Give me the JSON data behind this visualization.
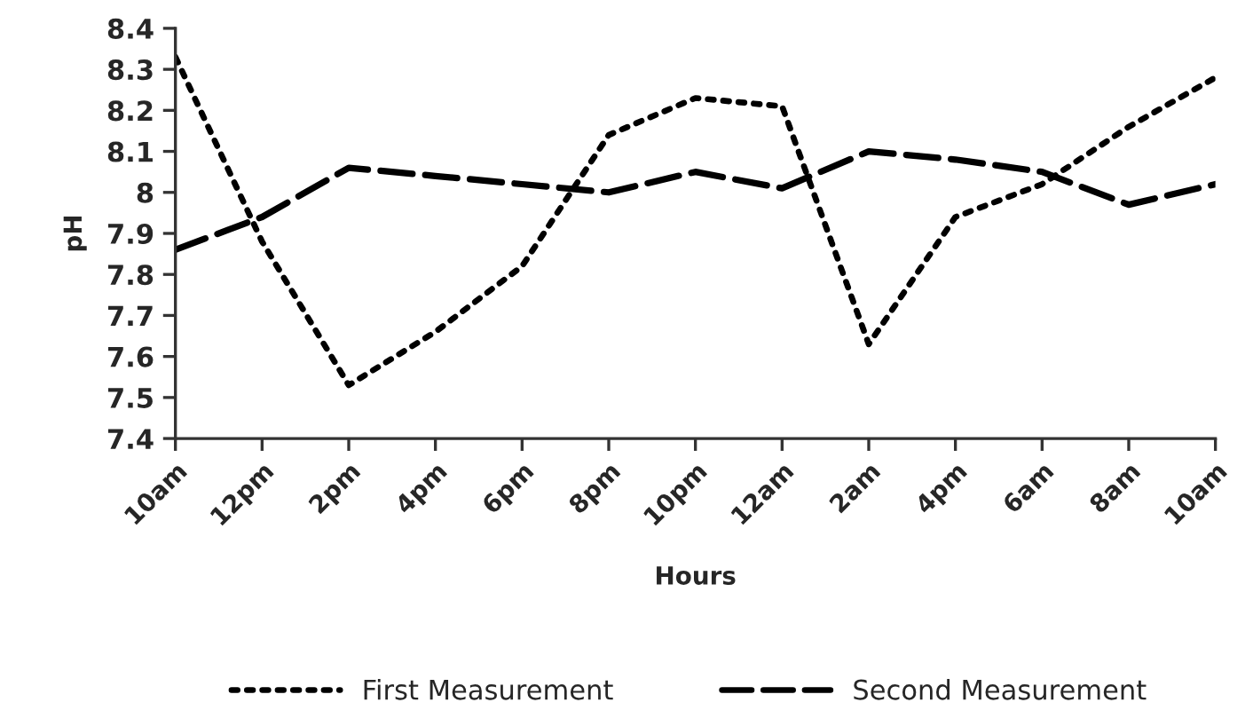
{
  "chart_data": {
    "type": "line",
    "xlabel": "Hours",
    "ylabel": "pH",
    "categories": [
      "10am",
      "12pm",
      "2pm",
      "4pm",
      "6pm",
      "8pm",
      "10pm",
      "12am",
      "2am",
      "4pm",
      "6am",
      "8am",
      "10am"
    ],
    "series": [
      {
        "name": "First Measurement",
        "color": "#000000",
        "line_style": "dotted",
        "values": [
          8.33,
          7.88,
          7.53,
          7.66,
          7.82,
          8.14,
          8.23,
          8.21,
          7.63,
          7.94,
          8.02,
          8.16,
          8.28
        ]
      },
      {
        "name": "Second Measurement",
        "color": "#000000",
        "line_style": "dashed",
        "values": [
          7.86,
          7.94,
          8.06,
          8.04,
          8.02,
          8.0,
          8.05,
          8.01,
          8.1,
          8.08,
          8.05,
          7.97,
          8.02
        ]
      }
    ],
    "ylim": [
      7.4,
      8.4
    ],
    "yticks": [
      7.4,
      7.5,
      7.6,
      7.7,
      7.8,
      7.9,
      8,
      8.1,
      8.2,
      8.3,
      8.4
    ],
    "grid": false,
    "legend": "bottom",
    "marker": "none"
  }
}
